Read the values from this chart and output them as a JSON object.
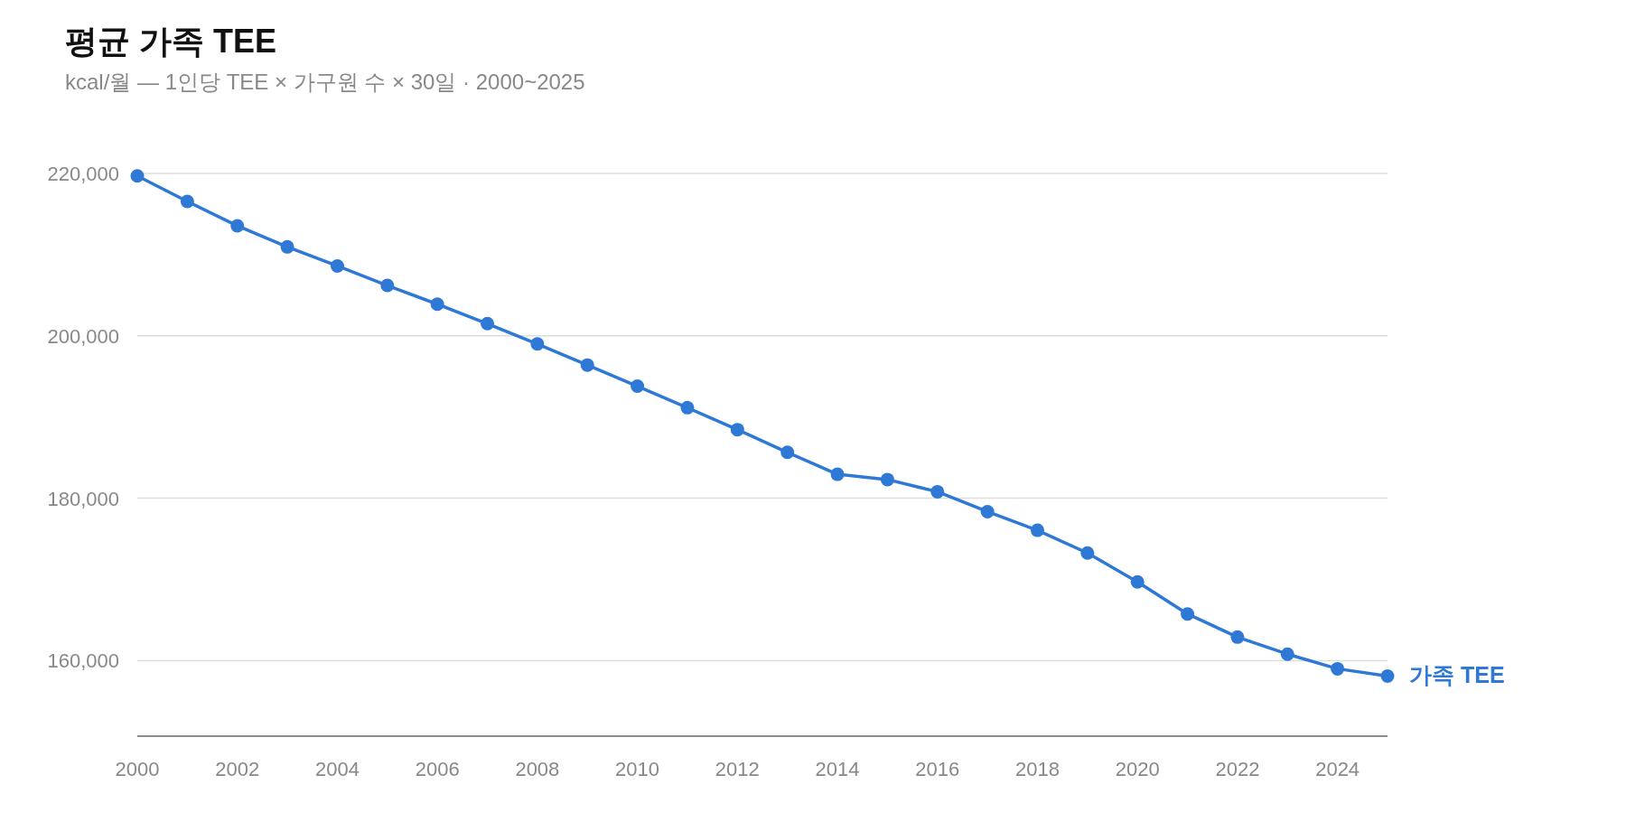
{
  "chart_data": {
    "type": "line",
    "title": "평균 가족 TEE",
    "subtitle": "kcal/월 — 1인당 TEE × 가구원 수 × 30일 · 2000~2025",
    "x": [
      2000,
      2001,
      2002,
      2003,
      2004,
      2005,
      2006,
      2007,
      2008,
      2009,
      2010,
      2011,
      2012,
      2013,
      2014,
      2015,
      2016,
      2017,
      2018,
      2019,
      2020,
      2021,
      2022,
      2023,
      2024,
      2025
    ],
    "series": [
      {
        "name": "가족 TEE",
        "color": "#2e78d6",
        "values": [
          219700,
          216550,
          213550,
          210950,
          208600,
          206200,
          203900,
          201500,
          199000,
          196400,
          193800,
          191150,
          188450,
          185650,
          182950,
          182300,
          180800,
          178350,
          176050,
          173250,
          169700,
          165750,
          162900,
          160800,
          159000,
          158100
        ]
      }
    ],
    "xlim": [
      2000,
      2025
    ],
    "xticks": [
      2000,
      2002,
      2004,
      2006,
      2008,
      2010,
      2012,
      2014,
      2016,
      2018,
      2020,
      2022,
      2024
    ],
    "ylim": [
      150700,
      220000
    ],
    "yticks": [
      {
        "value": 160000,
        "label": "160,000"
      },
      {
        "value": 180000,
        "label": "180,000"
      },
      {
        "value": 200000,
        "label": "200,000"
      },
      {
        "value": 220000,
        "label": "220,000"
      }
    ],
    "grid": "y",
    "legend": false,
    "marker": "circle",
    "line_style": "solid"
  }
}
